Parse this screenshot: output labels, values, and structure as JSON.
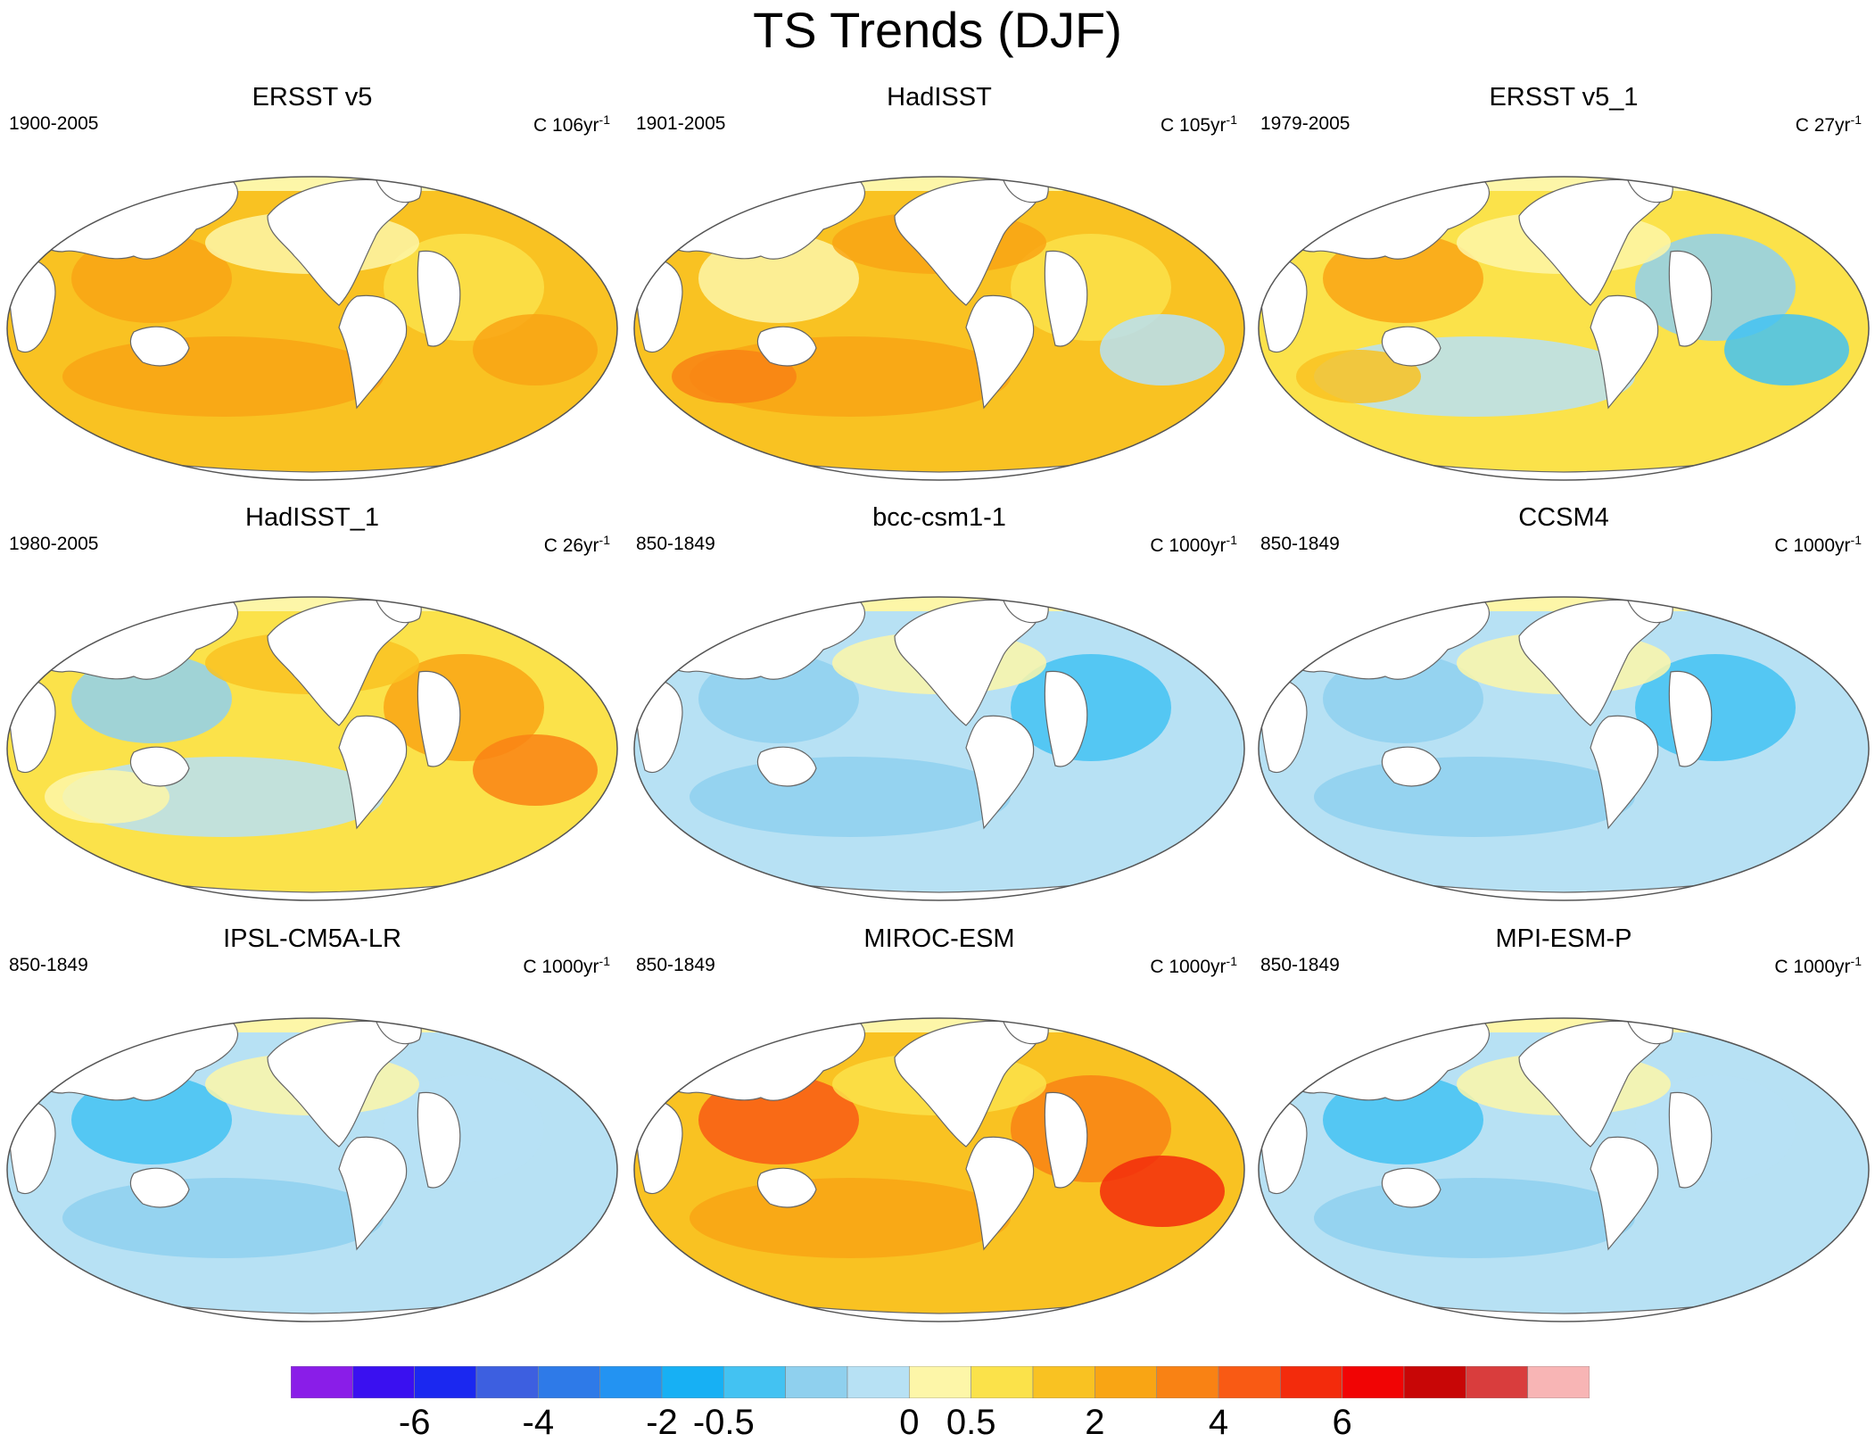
{
  "title": "TS Trends (DJF)",
  "panels": [
    {
      "title": "ERSST v5",
      "period": "1900-2005",
      "units_prefix": "C 106yr",
      "units_sup": "-1",
      "scheme": "warm"
    },
    {
      "title": "HadISST",
      "period": "1901-2005",
      "units_prefix": "C 105yr",
      "units_sup": "-1",
      "scheme": "warm-noisy"
    },
    {
      "title": "ERSST v5_1",
      "period": "1979-2005",
      "units_prefix": "C 27yr",
      "units_sup": "-1",
      "scheme": "mixed"
    },
    {
      "title": "HadISST_1",
      "period": "1980-2005",
      "units_prefix": "C 26yr",
      "units_sup": "-1",
      "scheme": "mixed-noisy"
    },
    {
      "title": "bcc-csm1-1",
      "period": "850-1849",
      "units_prefix": "C 1000yr",
      "units_sup": "-1",
      "scheme": "cool"
    },
    {
      "title": "CCSM4",
      "period": "850-1849",
      "units_prefix": "C 1000yr",
      "units_sup": "-1",
      "scheme": "cool"
    },
    {
      "title": "IPSL-CM5A-LR",
      "period": "850-1849",
      "units_prefix": "C 1000yr",
      "units_sup": "-1",
      "scheme": "cool-light"
    },
    {
      "title": "MIROC-ESM",
      "period": "850-1849",
      "units_prefix": "C 1000yr",
      "units_sup": "-1",
      "scheme": "hot"
    },
    {
      "title": "MPI-ESM-P",
      "period": "850-1849",
      "units_prefix": "C 1000yr",
      "units_sup": "-1",
      "scheme": "cool-light"
    }
  ],
  "colorbar": {
    "colors": [
      "#8a1de8",
      "#3a10f0",
      "#1b28f0",
      "#3d5fe0",
      "#2e7ae8",
      "#2393f2",
      "#17b0f4",
      "#43c2f2",
      "#8fd0ee",
      "#b7e1f4",
      "#fdf6a8",
      "#fbe24a",
      "#f9c222",
      "#f9a514",
      "#f98214",
      "#f95a14",
      "#f32b0c",
      "#f10404",
      "#c80606",
      "#d93d3d",
      "#f8b5b5"
    ],
    "labels": [
      "-6",
      "-4",
      "-2",
      "-0.5",
      "0",
      "0.5",
      "2",
      "4",
      "6"
    ],
    "label_boundaries": [
      2,
      4,
      6,
      7,
      10,
      11,
      13,
      15,
      17
    ]
  }
}
